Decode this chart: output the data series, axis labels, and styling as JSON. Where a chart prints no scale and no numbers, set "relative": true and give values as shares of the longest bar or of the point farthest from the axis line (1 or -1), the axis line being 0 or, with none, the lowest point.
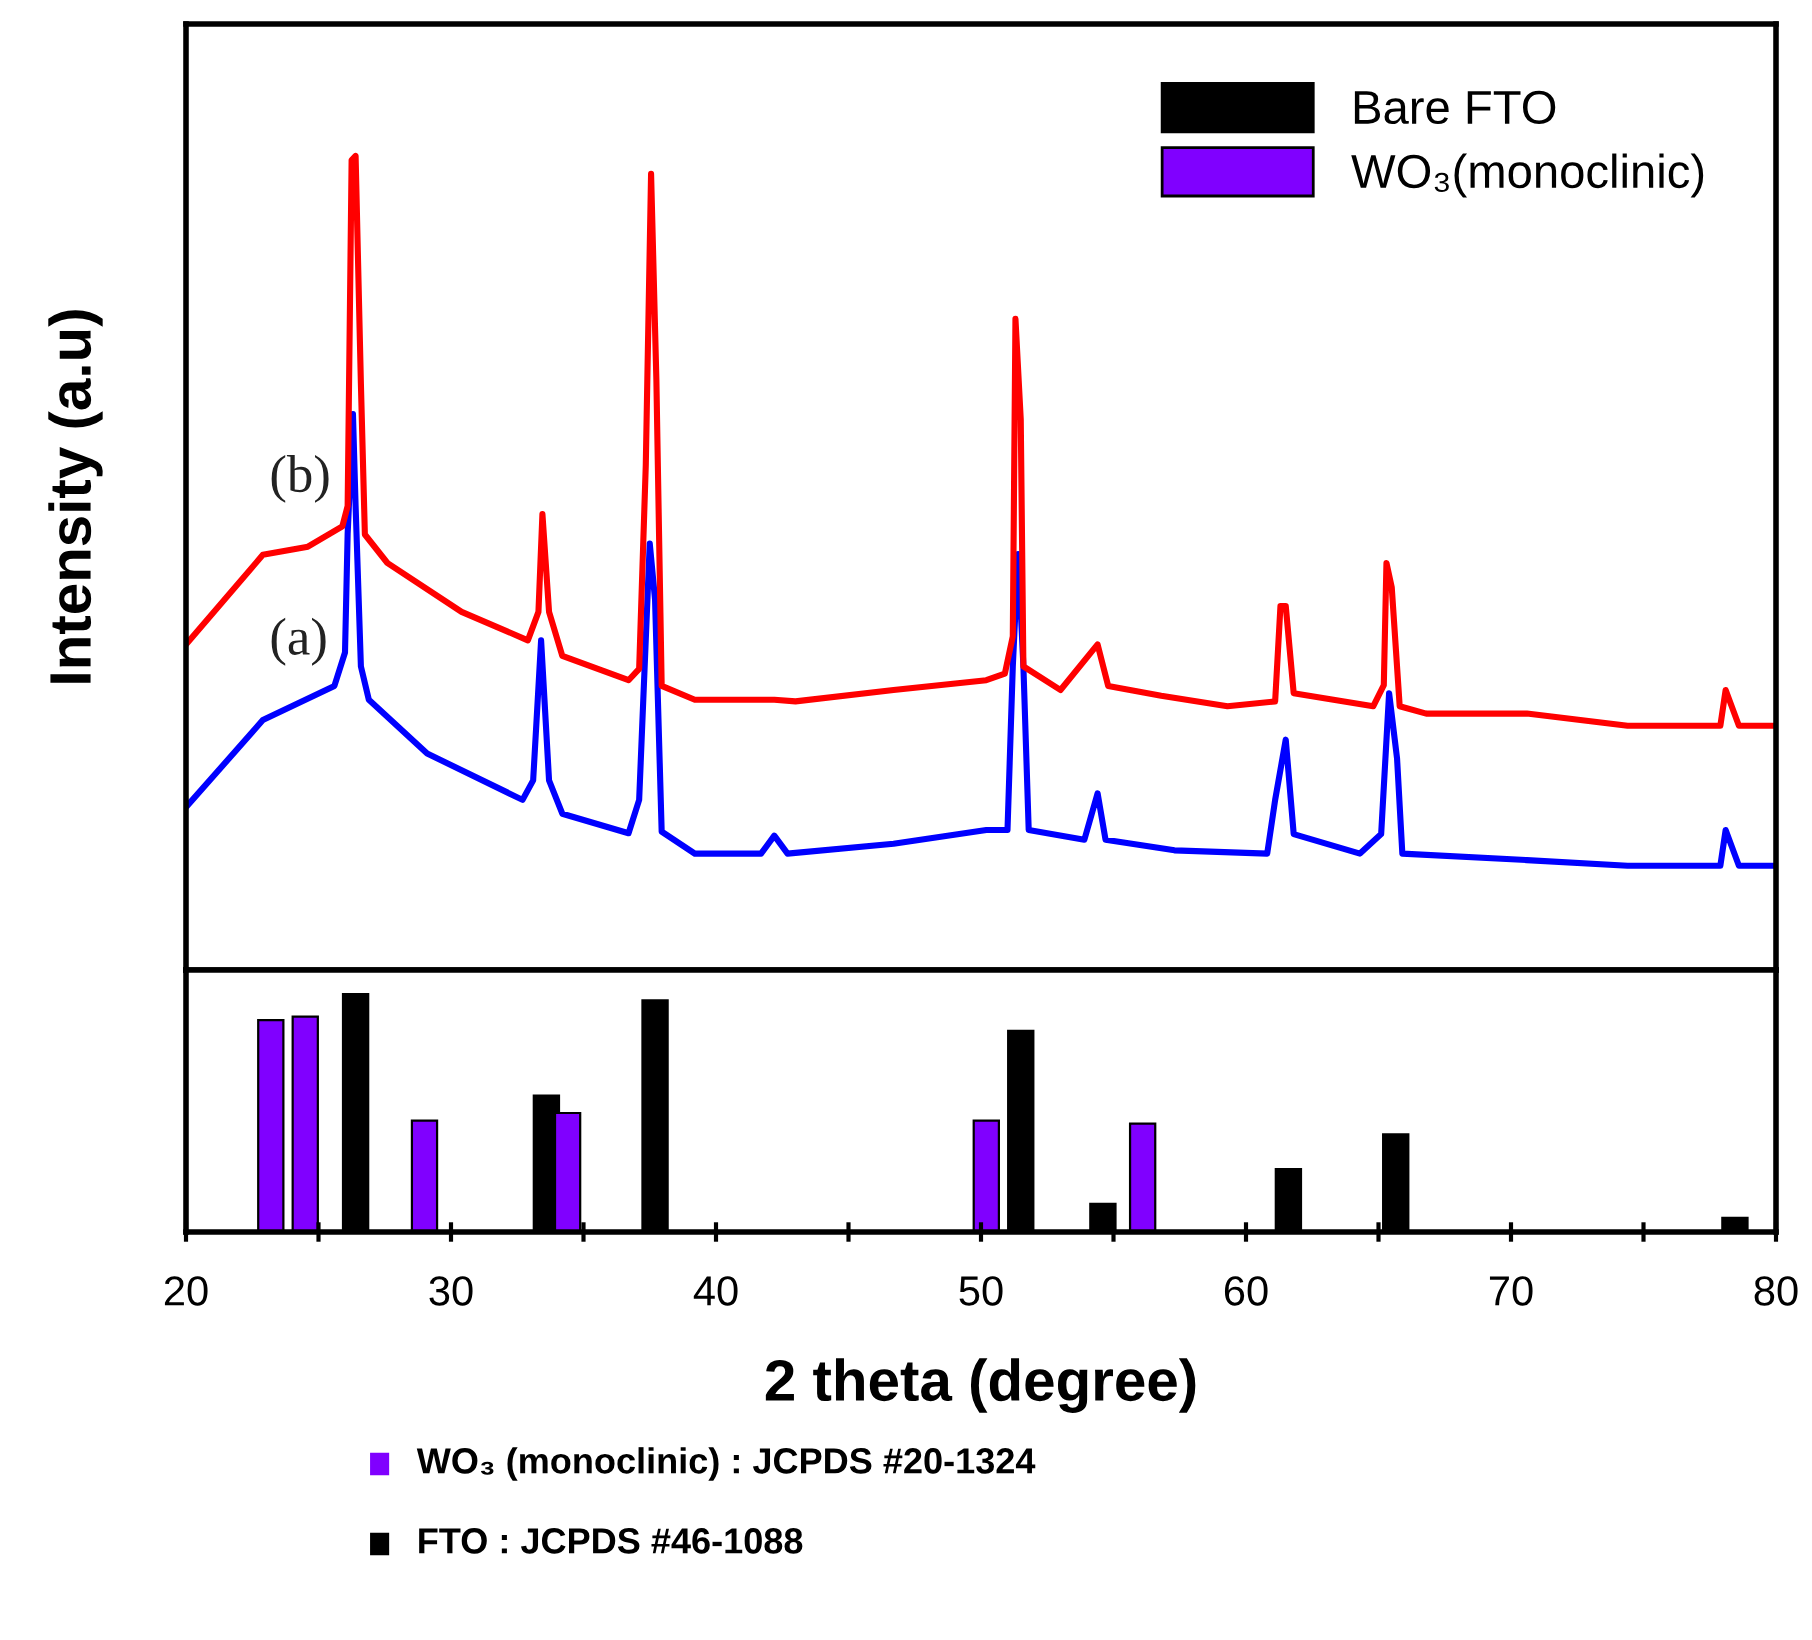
{
  "chart_data": [
    {
      "type": "line",
      "relative": true,
      "ylabel": "Intensity (a.u)",
      "xlim": [
        20,
        80
      ],
      "tick_labels": false,
      "grid": false,
      "series": [
        {
          "name": "(a)",
          "color": "#0000ff",
          "x": [
            20.0,
            22.9,
            25.6,
            26.0,
            26.1,
            26.3,
            26.4,
            26.6,
            26.9,
            29.1,
            32.7,
            33.1,
            33.4,
            33.7,
            34.2,
            36.7,
            37.1,
            37.5,
            37.7,
            37.95,
            39.2,
            41.7,
            42.2,
            42.7,
            46.7,
            50.2,
            51.0,
            51.2,
            51.4,
            51.6,
            51.8,
            53.9,
            54.4,
            54.7,
            57.3,
            60.8,
            61.1,
            61.5,
            61.8,
            64.3,
            65.1,
            65.4,
            65.7,
            65.9,
            70.6,
            74.4,
            77.9,
            78.1,
            78.6,
            79.9
          ],
          "values": [
            0.2,
            0.307,
            0.349,
            0.39,
            0.536,
            0.683,
            0.57,
            0.373,
            0.332,
            0.266,
            0.209,
            0.233,
            0.405,
            0.233,
            0.192,
            0.168,
            0.209,
            0.524,
            0.455,
            0.17,
            0.143,
            0.143,
            0.165,
            0.143,
            0.155,
            0.172,
            0.172,
            0.373,
            0.511,
            0.373,
            0.172,
            0.16,
            0.217,
            0.16,
            0.147,
            0.143,
            0.209,
            0.283,
            0.167,
            0.143,
            0.167,
            0.34,
            0.26,
            0.143,
            0.135,
            0.128,
            0.128,
            0.172,
            0.128,
            0.128
          ]
        },
        {
          "name": "(b)",
          "color": "#ff0000",
          "x": [
            20.0,
            22.9,
            24.6,
            25.9,
            26.1,
            26.25,
            26.4,
            26.6,
            26.75,
            27.6,
            30.4,
            32.9,
            33.3,
            33.45,
            33.7,
            34.2,
            36.7,
            37.1,
            37.35,
            37.55,
            37.75,
            37.95,
            39.2,
            42.2,
            43.0,
            46.7,
            50.2,
            50.9,
            51.2,
            51.3,
            51.5,
            51.6,
            53.0,
            54.4,
            54.8,
            56.8,
            59.3,
            61.1,
            61.3,
            61.5,
            61.8,
            64.8,
            65.2,
            65.3,
            65.5,
            65.8,
            66.8,
            70.6,
            74.4,
            77.9,
            78.1,
            78.6,
            79.9
          ],
          "values": [
            0.4,
            0.51,
            0.52,
            0.545,
            0.57,
            0.995,
            1.0,
            0.72,
            0.535,
            0.5,
            0.44,
            0.405,
            0.44,
            0.56,
            0.44,
            0.386,
            0.356,
            0.37,
            0.62,
            0.978,
            0.725,
            0.349,
            0.332,
            0.332,
            0.33,
            0.344,
            0.356,
            0.364,
            0.41,
            0.8,
            0.676,
            0.373,
            0.344,
            0.4,
            0.349,
            0.337,
            0.324,
            0.33,
            0.447,
            0.447,
            0.34,
            0.324,
            0.35,
            0.5,
            0.47,
            0.324,
            0.315,
            0.315,
            0.3,
            0.3,
            0.344,
            0.3,
            0.3
          ]
        }
      ]
    },
    {
      "type": "bar",
      "relative": true,
      "xlabel": "2 theta (degree)",
      "xlim": [
        20,
        80
      ],
      "xticks": [
        20,
        {
          "value": 25,
          "label": null
        },
        30,
        {
          "value": 35,
          "label": null
        },
        40,
        {
          "value": 45,
          "label": null
        },
        50,
        {
          "value": 55,
          "label": null
        },
        60,
        {
          "value": 65,
          "label": null
        },
        70,
        {
          "value": 75,
          "label": null
        },
        80
      ],
      "tick_labels": "x",
      "grid": false,
      "legend": "top right",
      "series": [
        {
          "name": "Bare FTO",
          "color": "#000000",
          "x": [
            26.4,
            33.6,
            37.7,
            51.5,
            54.6,
            61.6,
            65.65,
            78.45
          ],
          "values": [
            1.0,
            0.573,
            0.973,
            0.845,
            0.118,
            0.264,
            0.41,
            0.059
          ]
        },
        {
          "name": "WO₃(monoclinic)",
          "color": "#8000ff",
          "x": [
            23.2,
            24.5,
            29.0,
            34.4,
            50.2,
            56.1
          ],
          "values": [
            0.89,
            0.905,
            0.468,
            0.5,
            0.468,
            0.455
          ]
        }
      ],
      "annotations": [
        "WO₃ (monoclinic) : JCPDS #20-1324",
        "FTO : JCPDS #46-1088"
      ]
    }
  ]
}
